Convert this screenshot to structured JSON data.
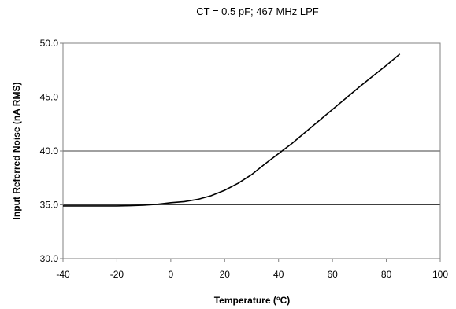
{
  "chart_data": {
    "type": "line",
    "title": "CT = 0.5 pF; 467 MHz LPF",
    "xlabel": "Temperature (°C)",
    "ylabel": "Input Referred Noise (nA RMS)",
    "xlim": [
      -40,
      100
    ],
    "ylim": [
      30,
      50
    ],
    "x_ticks": [
      "-40",
      "-20",
      "0",
      "20",
      "40",
      "60",
      "80",
      "100"
    ],
    "y_ticks": [
      "30.0",
      "35.0",
      "40.0",
      "45.0",
      "50.0"
    ],
    "grid": "horizontal",
    "line_color": "#000000",
    "series": [
      {
        "x": [
          -40,
          -35,
          -30,
          -25,
          -20,
          -15,
          -10,
          -5,
          0,
          5,
          10,
          15,
          20,
          25,
          30,
          35,
          40,
          45,
          50,
          55,
          60,
          65,
          70,
          75,
          80,
          85
        ],
        "y": [
          34.9,
          34.9,
          34.9,
          34.9,
          34.9,
          34.92,
          34.97,
          35.05,
          35.2,
          35.3,
          35.5,
          35.85,
          36.35,
          37.0,
          37.8,
          38.8,
          39.75,
          40.7,
          41.75,
          42.8,
          43.85,
          44.9,
          45.95,
          46.95,
          47.95,
          49.0
        ]
      }
    ]
  }
}
